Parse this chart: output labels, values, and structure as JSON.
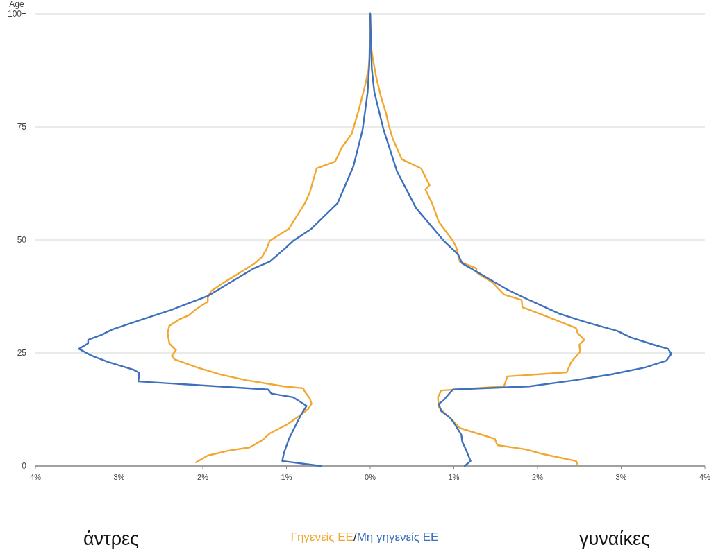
{
  "chart_data": {
    "type": "line",
    "ylabel": "Age",
    "xlim": [
      -4,
      4
    ],
    "xticks": [
      {
        "value": -4,
        "label": "4%"
      },
      {
        "value": -3,
        "label": "3%"
      },
      {
        "value": -2,
        "label": "2%"
      },
      {
        "value": -1,
        "label": "1%"
      },
      {
        "value": 0,
        "label": "0%"
      },
      {
        "value": 1,
        "label": "1%"
      },
      {
        "value": 2,
        "label": "2%"
      },
      {
        "value": 3,
        "label": "3%"
      },
      {
        "value": 4,
        "label": "4%"
      }
    ],
    "ylim": [
      0,
      100
    ],
    "yticks": [
      0,
      25,
      50,
      75,
      {
        "value": 100,
        "label": "100+"
      }
    ],
    "grid": "y",
    "legend": "bottom",
    "line_style": "solid",
    "marker": "none",
    "annotations": [
      "άντρες",
      "/",
      "γυναίκες"
    ],
    "series": [
      {
        "name": "Γηγενείς ΕΕ",
        "color": "#f2a72e",
        "x": [
          -2.08,
          -1.94,
          -1.69,
          -1.44,
          -1.29,
          -1.2,
          -0.99,
          -0.85,
          -0.74,
          -0.7,
          -0.72,
          -0.78,
          -0.8,
          -1.03,
          -1.49,
          -1.78,
          -2.07,
          -2.34,
          -2.37,
          -2.32,
          -2.4,
          -2.42,
          -2.4,
          -2.27,
          -2.17,
          -2.07,
          -1.94,
          -1.94,
          -1.9,
          -1.78,
          -1.65,
          -1.51,
          -1.38,
          -1.29,
          -1.24,
          -1.2,
          -0.97,
          -0.78,
          -0.72,
          -0.64,
          -0.42,
          -0.34,
          -0.22,
          -0.14,
          -0.06,
          -0.02,
          0,
          0
        ],
        "values": [
          0.8,
          2.3,
          3.4,
          4.1,
          5.7,
          7.2,
          9.2,
          11,
          12.6,
          13.8,
          14.9,
          16.4,
          17.2,
          17.6,
          19,
          20.2,
          21.8,
          23.6,
          24.4,
          25.6,
          27.1,
          29.4,
          31,
          32.5,
          33.3,
          34.8,
          36.3,
          37.4,
          38.7,
          40.2,
          41.7,
          43.3,
          44.8,
          46.3,
          47.9,
          49.8,
          52.5,
          58.1,
          60.6,
          65.8,
          67.3,
          70.4,
          73.5,
          78.5,
          84.2,
          87.7,
          91.9,
          100
        ]
      },
      {
        "name": "Μη γηγενείς ΕΕ",
        "color": "#3d70bd",
        "x": [
          -0.59,
          -1.05,
          -1.03,
          -0.97,
          -0.89,
          -0.82,
          -0.76,
          -0.92,
          -1.18,
          -1.22,
          -2.77,
          -2.76,
          -2.83,
          -3.13,
          -3.33,
          -3.48,
          -3.37,
          -3.37,
          -3.21,
          -3.08,
          -2.71,
          -2.38,
          -2.17,
          -1.94,
          -1.67,
          -1.39,
          -1.2,
          -1.03,
          -0.92,
          -0.7,
          -0.39,
          -0.2,
          -0.09,
          -0.03,
          -0.01,
          0
        ],
        "values": [
          0,
          1.1,
          2.9,
          6,
          9,
          11.5,
          13.3,
          15.2,
          16,
          16.9,
          18.7,
          20.6,
          21.3,
          23,
          24.4,
          25.9,
          27.1,
          27.9,
          29,
          30.2,
          32.5,
          34.5,
          36,
          37.6,
          40.6,
          43.7,
          45.2,
          47.9,
          49.8,
          52.5,
          58.1,
          66.3,
          74.4,
          82.7,
          88.8,
          100
        ]
      },
      {
        "color": "#f2a72e",
        "x": [
          2.48,
          2.46,
          2.07,
          1.85,
          1.52,
          1.49,
          1.07,
          0.99,
          0.9,
          0.82,
          0.81,
          0.85,
          1.6,
          1.64,
          2.35,
          2.4,
          2.51,
          2.5,
          2.56,
          2.48,
          2.46,
          2.12,
          1.82,
          1.81,
          1.6,
          1.46,
          1.27,
          1.27,
          1.07,
          1.03,
          0.99,
          0.82,
          0.74,
          0.66,
          0.71,
          0.61,
          0.38,
          0.27,
          0.22,
          0.19,
          0.13,
          0.07,
          0.03,
          0.01,
          0
        ],
        "values": [
          0.3,
          1.1,
          2.6,
          3.7,
          4.6,
          6,
          8.4,
          10,
          11.5,
          13,
          15.2,
          16.7,
          17.6,
          19.8,
          20.7,
          22.9,
          25.3,
          26.8,
          27.9,
          29.4,
          30.5,
          33,
          35.1,
          36.7,
          37.9,
          40.6,
          42.8,
          43.7,
          45.2,
          48.3,
          49.8,
          54,
          58.1,
          61.2,
          62.1,
          65.8,
          67.8,
          72.4,
          75.5,
          78,
          81.6,
          86.2,
          90.3,
          92.8,
          100
        ]
      },
      {
        "color": "#3d70bd",
        "x": [
          1.13,
          1.2,
          1.15,
          1.1,
          1.09,
          1.02,
          0.96,
          0.85,
          0.82,
          0.88,
          0.95,
          0.99,
          1.9,
          2.46,
          2.87,
          3.29,
          3.54,
          3.6,
          3.56,
          3.39,
          3.12,
          2.95,
          2.6,
          2.27,
          1.9,
          1.63,
          1.29,
          1.1,
          1.05,
          0.88,
          0.55,
          0.32,
          0.16,
          0.05,
          0.02,
          0
        ],
        "values": [
          0,
          1.1,
          3.4,
          5.4,
          6.9,
          9,
          10.6,
          12.1,
          13.7,
          14.6,
          16.1,
          16.9,
          17.6,
          19,
          20.2,
          21.8,
          23.3,
          24.8,
          25.9,
          26.8,
          28.4,
          29.9,
          31.7,
          33.6,
          36.7,
          39.1,
          42.8,
          44.8,
          46.8,
          49.8,
          57,
          65.2,
          74.4,
          82.7,
          87.7,
          100
        ]
      }
    ]
  }
}
